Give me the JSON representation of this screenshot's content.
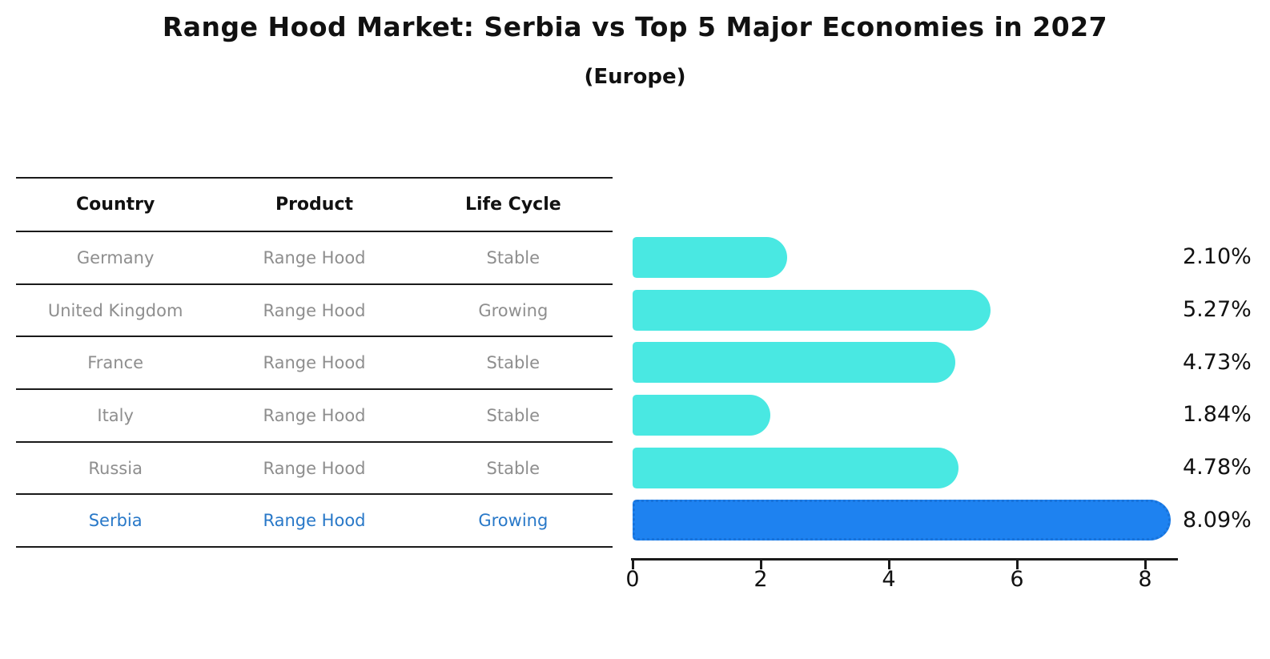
{
  "title": "Range Hood Market: Serbia vs Top 5 Major Economies in 2027",
  "subtitle": "(Europe)",
  "table": {
    "headers": {
      "country": "Country",
      "product": "Product",
      "life_cycle": "Life Cycle"
    },
    "rows": [
      {
        "country": "Germany",
        "product": "Range Hood",
        "life_cycle": "Stable"
      },
      {
        "country": "United Kingdom",
        "product": "Range Hood",
        "life_cycle": "Growing"
      },
      {
        "country": "France",
        "product": "Range Hood",
        "life_cycle": "Stable"
      },
      {
        "country": "Italy",
        "product": "Range Hood",
        "life_cycle": "Stable"
      },
      {
        "country": "Russia",
        "product": "Range Hood",
        "life_cycle": "Stable"
      },
      {
        "country": "Serbia",
        "product": "Range Hood",
        "life_cycle": "Growing"
      }
    ]
  },
  "chart_data": {
    "type": "bar",
    "orientation": "horizontal",
    "title": "Range Hood Market: Serbia vs Top 5 Major Economies in 2027 (Europe)",
    "categories": [
      "Germany",
      "United Kingdom",
      "France",
      "Italy",
      "Russia",
      "Serbia"
    ],
    "values": [
      2.1,
      5.27,
      4.73,
      1.84,
      4.78,
      8.09
    ],
    "value_labels": [
      "2.10%",
      "5.27%",
      "4.73%",
      "1.84%",
      "4.78%",
      "8.09%"
    ],
    "unit": "percent",
    "x_ticks": [
      0,
      2,
      4,
      6,
      8
    ],
    "tick_labels": [
      "0",
      "2",
      "4",
      "6",
      "8"
    ],
    "xlim": [
      0,
      8.5
    ],
    "grid": false,
    "legend_position": "none",
    "highlight_index": 5,
    "bar_color": "#49E8E2",
    "highlight_color": "#1E82F0",
    "highlight_border_color": "#1873DA"
  },
  "colors": {
    "highlight_text": "#2878C8",
    "table_text": "#8E8E8E",
    "line": "#1A1A1A"
  }
}
